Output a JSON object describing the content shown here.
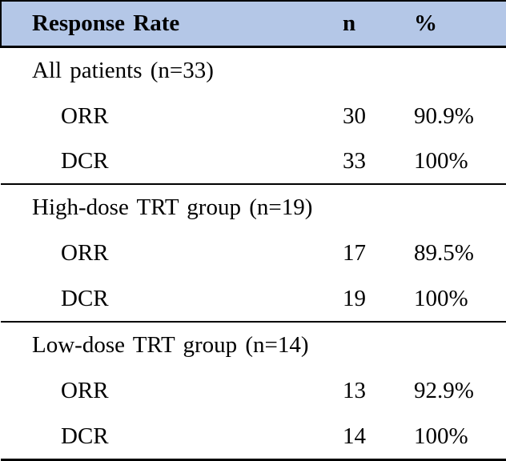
{
  "table": {
    "title": "Response Rate",
    "header": {
      "label": "Response Rate",
      "n": "n",
      "pct": "%"
    },
    "sections": [
      {
        "group": "All patients (n=33)",
        "rows": [
          {
            "label": "ORR",
            "n": "30",
            "pct": "90.9%"
          },
          {
            "label": "DCR",
            "n": "33",
            "pct": "100%"
          }
        ]
      },
      {
        "group": "High-dose TRT group (n=19)",
        "rows": [
          {
            "label": "ORR",
            "n": "17",
            "pct": "89.5%"
          },
          {
            "label": "DCR",
            "n": "19",
            "pct": "100%"
          }
        ]
      },
      {
        "group": "Low-dose TRT group (n=14)",
        "rows": [
          {
            "label": "ORR",
            "n": "13",
            "pct": "92.9%"
          },
          {
            "label": "DCR",
            "n": "14",
            "pct": "100%"
          }
        ]
      }
    ],
    "colors": {
      "header_bg": "#b4c7e7",
      "border": "#000000",
      "text": "#000000",
      "background": "#ffffff"
    }
  }
}
